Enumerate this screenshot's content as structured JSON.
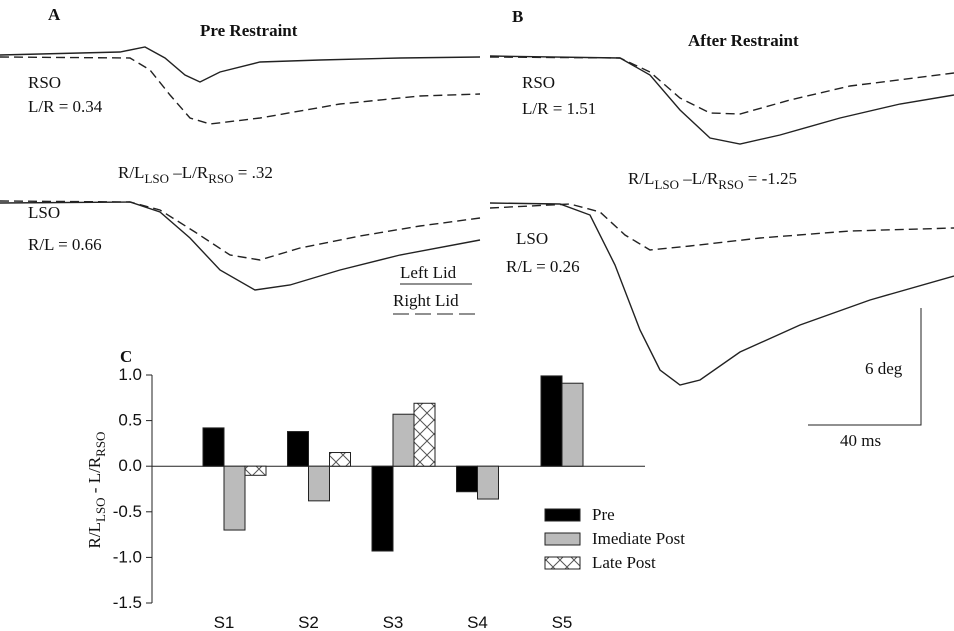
{
  "panels": {
    "a": {
      "letter": "A",
      "title": "Pre Restraint",
      "rso": "RSO",
      "rso_ratio": "L/R = 0.34",
      "formula": [
        "R/L",
        "LSO",
        " –L/R",
        "RSO",
        " = .32"
      ],
      "lso": "LSO",
      "lso_ratio": "R/L = 0.66",
      "legend_left": "Left Lid",
      "legend_right": "Right Lid"
    },
    "b": {
      "letter": "B",
      "title": "After Restraint",
      "rso": "RSO",
      "rso_ratio": "L/R = 1.51",
      "formula": [
        "R/L",
        "LSO",
        " –L/R",
        "RSO",
        " = -1.25"
      ],
      "lso": "LSO",
      "lso_ratio": "R/L = 0.26",
      "scale_y": "6 deg",
      "scale_x": "40 ms"
    }
  },
  "chart_data": {
    "type": "bar",
    "letter": "C",
    "y_label": [
      "R/L",
      "LSO",
      " - L/R",
      "RSO"
    ],
    "categories": [
      "S1",
      "S2",
      "S3",
      "S4",
      "S5"
    ],
    "series": [
      {
        "name": "Pre",
        "color": "#000000",
        "values": [
          0.42,
          0.38,
          -0.93,
          -0.28,
          0.99
        ]
      },
      {
        "name": "Imediate Post",
        "color": "#bbbbbb",
        "values": [
          -0.7,
          -0.38,
          0.57,
          -0.36,
          0.91
        ]
      },
      {
        "name": "Late Post",
        "color": "hatch",
        "values": [
          -0.1,
          0.15,
          0.69,
          null,
          null
        ]
      }
    ],
    "ylim": [
      -1.5,
      1.0
    ],
    "yticks": [
      {
        "value": 1.0,
        "label": "1.0"
      },
      0.5,
      {
        "value": 0.0,
        "label": "0.0"
      },
      -0.5,
      {
        "value": -1.0,
        "label": "-1.0"
      },
      -1.5
    ]
  }
}
